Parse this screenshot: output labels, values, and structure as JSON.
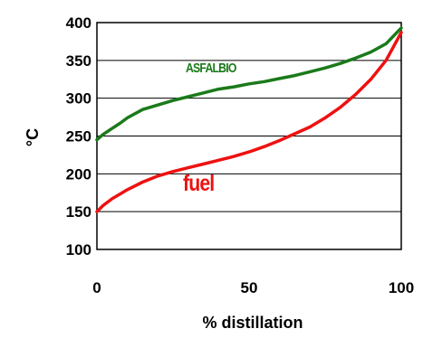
{
  "chart_data": {
    "type": "line",
    "title": "",
    "xlabel": "% distillation",
    "ylabel": "°C",
    "xlim": [
      0,
      100
    ],
    "ylim": [
      100,
      400
    ],
    "x_ticks": [
      "0",
      "50",
      "100"
    ],
    "y_ticks": [
      "100",
      "150",
      "200",
      "250",
      "300",
      "350",
      "400"
    ],
    "grid": "horizontal",
    "legend": "none",
    "series": [
      {
        "name": "ASFALBIO",
        "color": "#1a7a1a",
        "x": [
          0,
          2,
          5,
          8,
          10,
          15,
          20,
          25,
          30,
          35,
          40,
          45,
          50,
          55,
          60,
          65,
          70,
          75,
          80,
          85,
          90,
          95,
          100
        ],
        "y": [
          245,
          252,
          260,
          268,
          274,
          285,
          291,
          297,
          302,
          307,
          312,
          315,
          319,
          322,
          326,
          330,
          335,
          340,
          346,
          353,
          361,
          372,
          393
        ]
      },
      {
        "name": "fuel",
        "color": "#ee1111",
        "x": [
          0,
          2,
          5,
          10,
          15,
          20,
          25,
          30,
          35,
          40,
          45,
          50,
          55,
          60,
          65,
          70,
          75,
          80,
          85,
          90,
          95,
          100
        ],
        "y": [
          150,
          158,
          167,
          179,
          189,
          197,
          203,
          208,
          213,
          218,
          223,
          229,
          236,
          244,
          253,
          262,
          274,
          288,
          305,
          325,
          350,
          387
        ]
      }
    ]
  }
}
